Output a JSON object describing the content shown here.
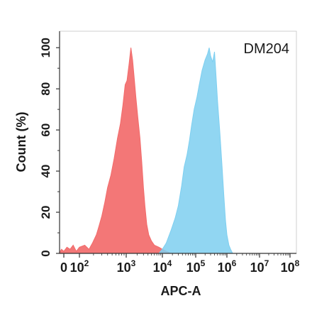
{
  "chart_data": {
    "type": "area",
    "title": "DM204",
    "xlabel": "APC-A",
    "ylabel": "Count  (%)",
    "x_scale": "biexponential",
    "y_ticks": [
      "0",
      "20",
      "40",
      "60",
      "80",
      "100"
    ],
    "ylim": [
      0,
      108
    ],
    "x_ticks": [
      {
        "value": 0,
        "base": "0",
        "exp": ""
      },
      {
        "value": 100,
        "base": "10",
        "exp": "2"
      },
      {
        "value": 1000,
        "base": "10",
        "exp": "3"
      },
      {
        "value": 10000,
        "base": "10",
        "exp": "4"
      },
      {
        "value": 100000,
        "base": "10",
        "exp": "5"
      },
      {
        "value": 1000000,
        "base": "10",
        "exp": "6"
      },
      {
        "value": 10000000,
        "base": "10",
        "exp": "7"
      },
      {
        "value": 100000000,
        "base": "10",
        "exp": "8"
      }
    ],
    "grid": false,
    "series": [
      {
        "color": "#f26b6b",
        "points": [
          [
            -30,
            0
          ],
          [
            -15,
            2
          ],
          [
            0,
            1
          ],
          [
            20,
            3
          ],
          [
            40,
            2
          ],
          [
            60,
            4
          ],
          [
            80,
            1
          ],
          [
            100,
            3
          ],
          [
            130,
            4
          ],
          [
            160,
            2
          ],
          [
            190,
            5
          ],
          [
            230,
            9
          ],
          [
            260,
            13
          ],
          [
            300,
            18
          ],
          [
            350,
            25
          ],
          [
            400,
            32
          ],
          [
            470,
            38
          ],
          [
            550,
            46
          ],
          [
            650,
            56
          ],
          [
            750,
            63
          ],
          [
            850,
            72
          ],
          [
            950,
            82
          ],
          [
            1050,
            84
          ],
          [
            1200,
            92
          ],
          [
            1350,
            100
          ],
          [
            1500,
            94
          ],
          [
            1650,
            86
          ],
          [
            1850,
            76
          ],
          [
            2100,
            66
          ],
          [
            2400,
            56
          ],
          [
            2700,
            44
          ],
          [
            3000,
            32
          ],
          [
            3300,
            23
          ],
          [
            3700,
            14
          ],
          [
            4200,
            9
          ],
          [
            5000,
            6
          ],
          [
            6000,
            4
          ],
          [
            8000,
            3
          ],
          [
            10000,
            2
          ],
          [
            13000,
            1
          ],
          [
            18000,
            0
          ]
        ]
      },
      {
        "color": "#7ecff0",
        "points": [
          [
            8000,
            0
          ],
          [
            10000,
            2
          ],
          [
            13000,
            5
          ],
          [
            18000,
            11
          ],
          [
            24000,
            17
          ],
          [
            30000,
            23
          ],
          [
            38000,
            33
          ],
          [
            45000,
            42
          ],
          [
            55000,
            48
          ],
          [
            65000,
            55
          ],
          [
            75000,
            62
          ],
          [
            90000,
            70
          ],
          [
            110000,
            76
          ],
          [
            130000,
            82
          ],
          [
            160000,
            89
          ],
          [
            200000,
            94
          ],
          [
            240000,
            97
          ],
          [
            270000,
            100
          ],
          [
            300000,
            96
          ],
          [
            350000,
            93
          ],
          [
            400000,
            98
          ],
          [
            450000,
            86
          ],
          [
            500000,
            74
          ],
          [
            600000,
            58
          ],
          [
            700000,
            42
          ],
          [
            800000,
            28
          ],
          [
            900000,
            16
          ],
          [
            1000000,
            9
          ],
          [
            1150000,
            4
          ],
          [
            1300000,
            2
          ],
          [
            1500000,
            0
          ]
        ]
      }
    ]
  }
}
